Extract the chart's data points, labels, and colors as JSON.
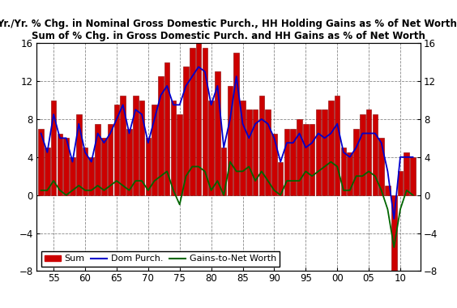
{
  "title_line1": "Yr./Yr. % Chg. in Nominal Gross Domestic Purch., HH Holding Gains as % of Net Worth,",
  "title_line2": "Sum of % Chg. in Gross Domestic Purch. and HH Gains as % of Net Worth",
  "years": [
    1953,
    1954,
    1955,
    1956,
    1957,
    1958,
    1959,
    1960,
    1961,
    1962,
    1963,
    1964,
    1965,
    1966,
    1967,
    1968,
    1969,
    1970,
    1971,
    1972,
    1973,
    1974,
    1975,
    1976,
    1977,
    1978,
    1979,
    1980,
    1981,
    1982,
    1983,
    1984,
    1985,
    1986,
    1987,
    1988,
    1989,
    1990,
    1991,
    1992,
    1993,
    1994,
    1995,
    1996,
    1997,
    1998,
    1999,
    2000,
    2001,
    2002,
    2003,
    2004,
    2005,
    2006,
    2007,
    2008,
    2009,
    2010,
    2011,
    2012
  ],
  "dom_purch": [
    6.5,
    4.5,
    8.5,
    6.0,
    6.0,
    3.5,
    7.5,
    4.5,
    3.5,
    6.5,
    5.5,
    6.5,
    8.0,
    9.5,
    6.5,
    9.0,
    8.5,
    5.5,
    8.0,
    10.5,
    11.5,
    9.5,
    9.5,
    11.5,
    12.5,
    13.5,
    13.0,
    9.5,
    11.5,
    5.0,
    8.0,
    12.5,
    7.5,
    6.0,
    7.5,
    8.0,
    7.5,
    6.0,
    3.5,
    5.5,
    5.5,
    6.5,
    5.0,
    5.5,
    6.5,
    6.0,
    6.5,
    7.5,
    4.5,
    4.0,
    5.0,
    6.5,
    6.5,
    6.5,
    5.5,
    2.5,
    -2.5,
    4.0,
    4.0,
    4.0
  ],
  "gains": [
    0.5,
    0.5,
    1.5,
    0.5,
    0.0,
    0.5,
    1.0,
    0.5,
    0.5,
    1.0,
    0.5,
    1.0,
    1.5,
    1.0,
    0.5,
    1.5,
    1.5,
    0.5,
    1.5,
    2.0,
    2.5,
    0.5,
    -1.0,
    2.0,
    3.0,
    3.0,
    2.5,
    0.5,
    1.5,
    0.0,
    3.5,
    2.5,
    2.5,
    3.0,
    1.5,
    2.5,
    1.5,
    0.5,
    0.0,
    1.5,
    1.5,
    1.5,
    2.5,
    2.0,
    2.5,
    3.0,
    3.5,
    3.0,
    0.5,
    0.5,
    2.0,
    2.0,
    2.5,
    2.0,
    0.5,
    -1.5,
    -5.5,
    -1.5,
    0.5,
    0.0
  ],
  "sum": [
    7.0,
    5.0,
    10.0,
    6.5,
    6.0,
    4.0,
    8.5,
    5.0,
    4.0,
    7.5,
    6.0,
    7.5,
    9.5,
    10.5,
    7.0,
    10.5,
    10.0,
    6.0,
    9.5,
    12.5,
    14.0,
    10.0,
    8.5,
    13.5,
    15.5,
    16.5,
    15.5,
    10.0,
    13.0,
    5.0,
    11.5,
    15.0,
    10.0,
    9.0,
    9.0,
    10.5,
    9.0,
    6.5,
    3.5,
    7.0,
    7.0,
    8.0,
    7.5,
    7.5,
    9.0,
    9.0,
    10.0,
    10.5,
    5.0,
    4.5,
    7.0,
    8.5,
    9.0,
    8.5,
    6.0,
    1.0,
    -8.0,
    2.5,
    4.5,
    4.0
  ],
  "bar_color": "#cc0000",
  "bar_edge_color": "#880000",
  "dom_purch_color": "#0000cc",
  "gains_color": "#006600",
  "ylim": [
    -8,
    16
  ],
  "yticks": [
    -8,
    -4,
    0,
    4,
    8,
    12,
    16
  ],
  "xtick_labels": [
    "55",
    "60",
    "65",
    "70",
    "75",
    "80",
    "85",
    "90",
    "95",
    "00",
    "05",
    "10"
  ],
  "xtick_positions": [
    1955,
    1960,
    1965,
    1970,
    1975,
    1980,
    1985,
    1990,
    1995,
    2000,
    2005,
    2010
  ],
  "background_color": "#ffffff",
  "grid_color": "#888888",
  "title_fontsize": 8.5,
  "legend_labels": [
    "Sum",
    "Dom Purch.",
    "Gains-to-Net Worth"
  ]
}
